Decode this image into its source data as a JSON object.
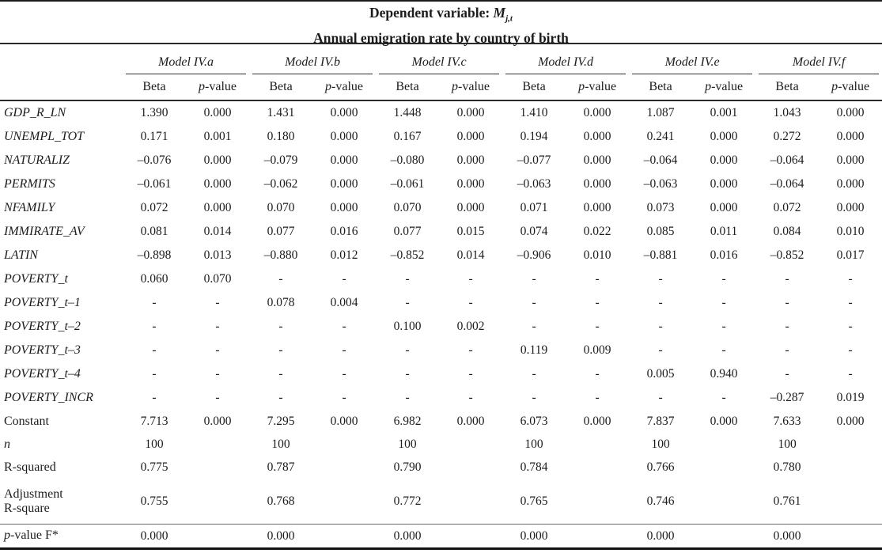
{
  "title": {
    "prefix": "Dependent variable: ",
    "variable": "M",
    "subscript": "j,t",
    "line2": "Annual emigration rate by country of birth"
  },
  "table": {
    "models": [
      "Model IV.a",
      "Model IV.b",
      "Model IV.c",
      "Model IV.d",
      "Model IV.e",
      "Model IV.f"
    ],
    "col_headers": [
      "Beta",
      "p-value"
    ],
    "rows": [
      {
        "label": "GDP_R_LN",
        "italic": true,
        "cells": [
          "1.390",
          "0.000",
          "1.431",
          "0.000",
          "1.448",
          "0.000",
          "1.410",
          "0.000",
          "1.087",
          "0.001",
          "1.043",
          "0.000"
        ]
      },
      {
        "label": "UNEMPL_TOT",
        "italic": true,
        "cells": [
          "0.171",
          "0.001",
          "0.180",
          "0.000",
          "0.167",
          "0.000",
          "0.194",
          "0.000",
          "0.241",
          "0.000",
          "0.272",
          "0.000"
        ]
      },
      {
        "label": "NATURALIZ",
        "italic": true,
        "cells": [
          "–0.076",
          "0.000",
          "–0.079",
          "0.000",
          "–0.080",
          "0.000",
          "–0.077",
          "0.000",
          "–0.064",
          "0.000",
          "–0.064",
          "0.000"
        ]
      },
      {
        "label": "PERMITS",
        "italic": true,
        "cells": [
          "–0.061",
          "0.000",
          "–0.062",
          "0.000",
          "–0.061",
          "0.000",
          "–0.063",
          "0.000",
          "–0.063",
          "0.000",
          "–0.064",
          "0.000"
        ]
      },
      {
        "label": "NFAMILY",
        "italic": true,
        "cells": [
          "0.072",
          "0.000",
          "0.070",
          "0.000",
          "0.070",
          "0.000",
          "0.071",
          "0.000",
          "0.073",
          "0.000",
          "0.072",
          "0.000"
        ]
      },
      {
        "label": "IMMIRATE_AV",
        "italic": true,
        "cells": [
          "0.081",
          "0.014",
          "0.077",
          "0.016",
          "0.077",
          "0.015",
          "0.074",
          "0.022",
          "0.085",
          "0.011",
          "0.084",
          "0.010"
        ]
      },
      {
        "label": "LATIN",
        "italic": true,
        "cells": [
          "–0.898",
          "0.013",
          "–0.880",
          "0.012",
          "–0.852",
          "0.014",
          "–0.906",
          "0.010",
          "–0.881",
          "0.016",
          "–0.852",
          "0.017"
        ]
      },
      {
        "label": "POVERTY_t",
        "italic": true,
        "cells": [
          "0.060",
          "0.070",
          "-",
          "-",
          "-",
          "-",
          "-",
          "-",
          "-",
          "-",
          "-",
          "-"
        ]
      },
      {
        "label": "POVERTY_t–1",
        "italic": true,
        "cells": [
          "-",
          "-",
          "0.078",
          "0.004",
          "-",
          "-",
          "-",
          "-",
          "-",
          "-",
          "-",
          "-"
        ]
      },
      {
        "label": "POVERTY_t–2",
        "italic": true,
        "cells": [
          "-",
          "-",
          "-",
          "-",
          "0.100",
          "0.002",
          "-",
          "-",
          "-",
          "-",
          "-",
          "-"
        ]
      },
      {
        "label": "POVERTY_t–3",
        "italic": true,
        "cells": [
          "-",
          "-",
          "-",
          "-",
          "-",
          "-",
          "0.119",
          "0.009",
          "-",
          "-",
          "-",
          "-"
        ]
      },
      {
        "label": "POVERTY_t–4",
        "italic": true,
        "cells": [
          "-",
          "-",
          "-",
          "-",
          "-",
          "-",
          "-",
          "-",
          "0.005",
          "0.940",
          "-",
          "-"
        ]
      },
      {
        "label": "POVERTY_INCR",
        "italic": true,
        "cells": [
          "-",
          "-",
          "-",
          "-",
          "-",
          "-",
          "-",
          "-",
          "-",
          "-",
          "–0.287",
          "0.019"
        ]
      },
      {
        "label": "Constant",
        "italic": false,
        "cells": [
          "7.713",
          "0.000",
          "7.295",
          "0.000",
          "6.982",
          "0.000",
          "6.073",
          "0.000",
          "7.837",
          "0.000",
          "7.633",
          "0.000"
        ]
      },
      {
        "label": "n",
        "italic": true,
        "short": true,
        "cells": [
          "100",
          "",
          "100",
          "",
          "100",
          "",
          "100",
          "",
          "100",
          "",
          "100",
          ""
        ]
      },
      {
        "label": "R-squared",
        "italic": false,
        "cells": [
          "0.775",
          "",
          "0.787",
          "",
          "0.790",
          "",
          "0.784",
          "",
          "0.766",
          "",
          "0.780",
          ""
        ]
      },
      {
        "label": "Adjustment\nR-square",
        "italic": false,
        "tall": true,
        "cells": [
          "0.755",
          "",
          "0.768",
          "",
          "0.772",
          "",
          "0.765",
          "",
          "0.746",
          "",
          "0.761",
          ""
        ]
      },
      {
        "label": "p-value F*",
        "italic": false,
        "p_italic_first": true,
        "rule_above": true,
        "cells": [
          "0.000",
          "",
          "0.000",
          "",
          "0.000",
          "",
          "0.000",
          "",
          "0.000",
          "",
          "0.000",
          ""
        ]
      }
    ]
  }
}
